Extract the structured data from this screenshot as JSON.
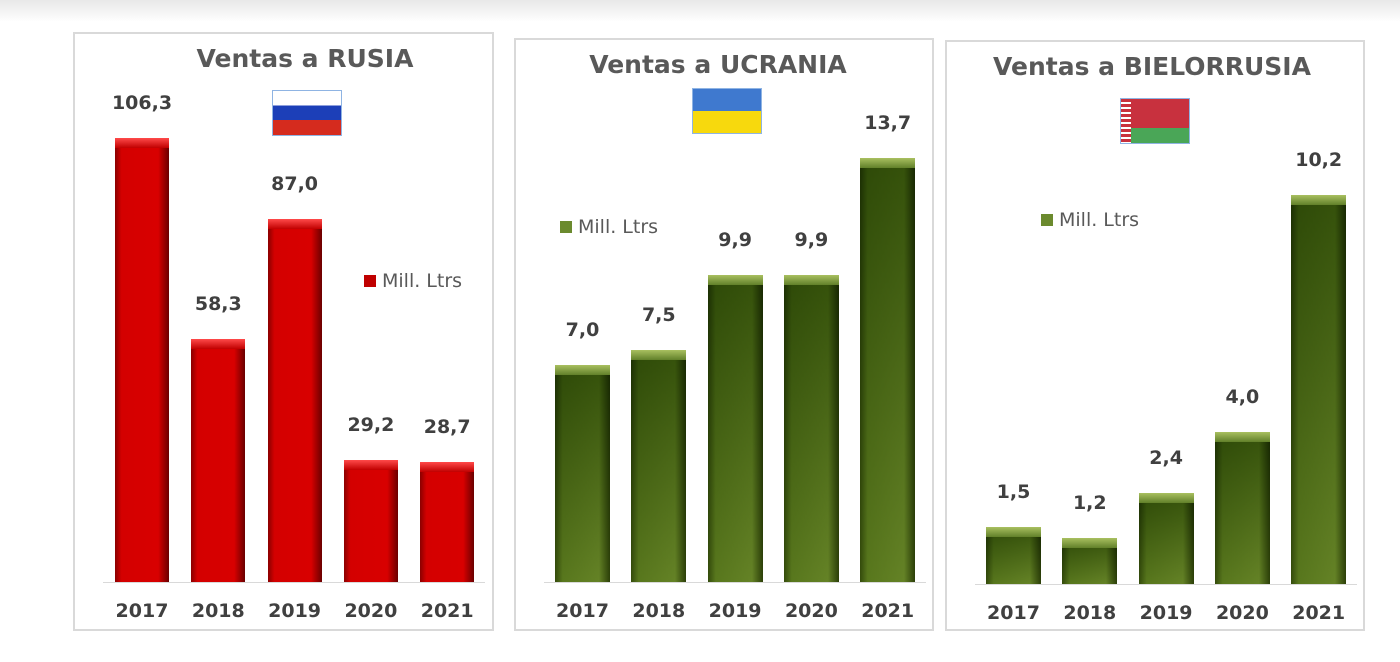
{
  "chart_data": [
    {
      "type": "bar",
      "title": "Ventas a RUSIA",
      "categories": [
        "2017",
        "2018",
        "2019",
        "2020",
        "2021"
      ],
      "values": [
        106.3,
        58.3,
        87.0,
        29.2,
        28.7
      ],
      "labels": [
        "106,3",
        "58,3",
        "87,0",
        "29,2",
        "28,7"
      ],
      "legend": "Mill. Ltrs",
      "legend_position": "right",
      "ylim": [
        0,
        115
      ],
      "color": "#c00000",
      "flag": "russia-flag"
    },
    {
      "type": "bar",
      "title": "Ventas a UCRANIA",
      "categories": [
        "2017",
        "2018",
        "2019",
        "2020",
        "2021"
      ],
      "values": [
        7.0,
        7.5,
        9.9,
        9.9,
        13.7
      ],
      "labels": [
        "7,0",
        "7,5",
        "9,9",
        "9,9",
        "13,7"
      ],
      "legend": "Mill. Ltrs",
      "legend_position": "top-left",
      "ylim": [
        0,
        15.5
      ],
      "color": "#6b8a2e",
      "flag": "ukraine-flag"
    },
    {
      "type": "bar",
      "title": "Ventas a BIELORRUSIA",
      "categories": [
        "2017",
        "2018",
        "2019",
        "2020",
        "2021"
      ],
      "values": [
        1.5,
        1.2,
        2.4,
        4.0,
        10.2
      ],
      "labels": [
        "1,5",
        "1,2",
        "2,4",
        "4,0",
        "10,2"
      ],
      "legend": "Mill. Ltrs",
      "legend_position": "top-left",
      "ylim": [
        0,
        12.6
      ],
      "color": "#6b8a2e",
      "flag": "belarus-flag"
    }
  ]
}
